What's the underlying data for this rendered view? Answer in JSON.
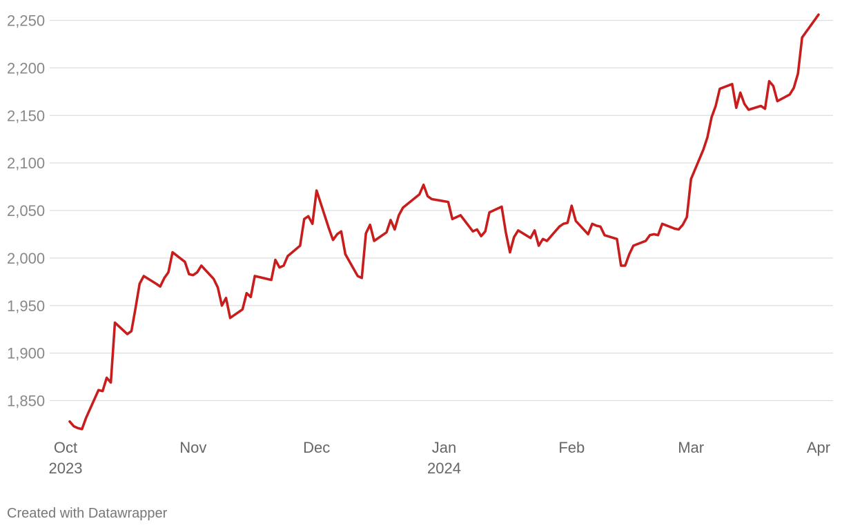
{
  "chart_data": {
    "type": "line",
    "title": "",
    "xlabel": "",
    "ylabel": "",
    "ylim": [
      1810,
      2260
    ],
    "xlim": [
      "2023-10-01",
      "2024-04-01"
    ],
    "y_ticks": [
      1850,
      1900,
      1950,
      2000,
      2050,
      2100,
      2150,
      2200,
      2250
    ],
    "y_tick_labels": [
      "1,850",
      "1,900",
      "1,950",
      "2,000",
      "2,050",
      "2,100",
      "2,150",
      "2,200",
      "2,250"
    ],
    "x_ticks": [
      {
        "date": "2023-10-01",
        "label": "Oct",
        "sublabel": "2023"
      },
      {
        "date": "2023-11-01",
        "label": "Nov",
        "sublabel": ""
      },
      {
        "date": "2023-12-01",
        "label": "Dec",
        "sublabel": ""
      },
      {
        "date": "2024-01-01",
        "label": "Jan",
        "sublabel": "2024"
      },
      {
        "date": "2024-02-01",
        "label": "Feb",
        "sublabel": ""
      },
      {
        "date": "2024-03-01",
        "label": "Mar",
        "sublabel": ""
      },
      {
        "date": "2024-04-01",
        "label": "Apr",
        "sublabel": ""
      }
    ],
    "grid": true,
    "line_color": "#c71e1d",
    "series": [
      {
        "values": [
          [
            "2023-10-02",
            1828
          ],
          [
            "2023-10-03",
            1823
          ],
          [
            "2023-10-04",
            1821
          ],
          [
            "2023-10-05",
            1820
          ],
          [
            "2023-10-06",
            1832
          ],
          [
            "2023-10-09",
            1861
          ],
          [
            "2023-10-10",
            1860
          ],
          [
            "2023-10-11",
            1874
          ],
          [
            "2023-10-12",
            1869
          ],
          [
            "2023-10-13",
            1932
          ],
          [
            "2023-10-16",
            1920
          ],
          [
            "2023-10-17",
            1923
          ],
          [
            "2023-10-18",
            1947
          ],
          [
            "2023-10-19",
            1973
          ],
          [
            "2023-10-20",
            1981
          ],
          [
            "2023-10-23",
            1973
          ],
          [
            "2023-10-24",
            1970
          ],
          [
            "2023-10-25",
            1979
          ],
          [
            "2023-10-26",
            1985
          ],
          [
            "2023-10-27",
            2006
          ],
          [
            "2023-10-30",
            1996
          ],
          [
            "2023-10-31",
            1983
          ],
          [
            "2023-11-01",
            1982
          ],
          [
            "2023-11-02",
            1985
          ],
          [
            "2023-11-03",
            1992
          ],
          [
            "2023-11-06",
            1978
          ],
          [
            "2023-11-07",
            1969
          ],
          [
            "2023-11-08",
            1950
          ],
          [
            "2023-11-09",
            1958
          ],
          [
            "2023-11-10",
            1937
          ],
          [
            "2023-11-13",
            1946
          ],
          [
            "2023-11-14",
            1963
          ],
          [
            "2023-11-15",
            1959
          ],
          [
            "2023-11-16",
            1981
          ],
          [
            "2023-11-17",
            1980
          ],
          [
            "2023-11-20",
            1977
          ],
          [
            "2023-11-21",
            1998
          ],
          [
            "2023-11-22",
            1990
          ],
          [
            "2023-11-23",
            1992
          ],
          [
            "2023-11-24",
            2002
          ],
          [
            "2023-11-27",
            2013
          ],
          [
            "2023-11-28",
            2041
          ],
          [
            "2023-11-29",
            2044
          ],
          [
            "2023-11-30",
            2036
          ],
          [
            "2023-12-01",
            2071
          ],
          [
            "2023-12-04",
            2031
          ],
          [
            "2023-12-05",
            2019
          ],
          [
            "2023-12-06",
            2025
          ],
          [
            "2023-12-07",
            2028
          ],
          [
            "2023-12-08",
            2004
          ],
          [
            "2023-12-11",
            1981
          ],
          [
            "2023-12-12",
            1979
          ],
          [
            "2023-12-13",
            2026
          ],
          [
            "2023-12-14",
            2035
          ],
          [
            "2023-12-15",
            2018
          ],
          [
            "2023-12-18",
            2027
          ],
          [
            "2023-12-19",
            2040
          ],
          [
            "2023-12-20",
            2030
          ],
          [
            "2023-12-21",
            2045
          ],
          [
            "2023-12-22",
            2053
          ],
          [
            "2023-12-26",
            2067
          ],
          [
            "2023-12-27",
            2077
          ],
          [
            "2023-12-28",
            2065
          ],
          [
            "2023-12-29",
            2062
          ],
          [
            "2024-01-02",
            2059
          ],
          [
            "2024-01-03",
            2041
          ],
          [
            "2024-01-04",
            2043
          ],
          [
            "2024-01-05",
            2045
          ],
          [
            "2024-01-08",
            2028
          ],
          [
            "2024-01-09",
            2030
          ],
          [
            "2024-01-10",
            2023
          ],
          [
            "2024-01-11",
            2028
          ],
          [
            "2024-01-12",
            2048
          ],
          [
            "2024-01-15",
            2054
          ],
          [
            "2024-01-16",
            2027
          ],
          [
            "2024-01-17",
            2006
          ],
          [
            "2024-01-18",
            2022
          ],
          [
            "2024-01-19",
            2029
          ],
          [
            "2024-01-22",
            2021
          ],
          [
            "2024-01-23",
            2029
          ],
          [
            "2024-01-24",
            2013
          ],
          [
            "2024-01-25",
            2020
          ],
          [
            "2024-01-26",
            2018
          ],
          [
            "2024-01-29",
            2033
          ],
          [
            "2024-01-30",
            2036
          ],
          [
            "2024-01-31",
            2037
          ],
          [
            "2024-02-01",
            2055
          ],
          [
            "2024-02-02",
            2039
          ],
          [
            "2024-02-05",
            2025
          ],
          [
            "2024-02-06",
            2036
          ],
          [
            "2024-02-07",
            2034
          ],
          [
            "2024-02-08",
            2033
          ],
          [
            "2024-02-09",
            2024
          ],
          [
            "2024-02-12",
            2020
          ],
          [
            "2024-02-13",
            1992
          ],
          [
            "2024-02-14",
            1992
          ],
          [
            "2024-02-15",
            2004
          ],
          [
            "2024-02-16",
            2013
          ],
          [
            "2024-02-19",
            2018
          ],
          [
            "2024-02-20",
            2024
          ],
          [
            "2024-02-21",
            2025
          ],
          [
            "2024-02-22",
            2024
          ],
          [
            "2024-02-23",
            2036
          ],
          [
            "2024-02-26",
            2031
          ],
          [
            "2024-02-27",
            2030
          ],
          [
            "2024-02-28",
            2035
          ],
          [
            "2024-02-29",
            2043
          ],
          [
            "2024-03-01",
            2083
          ],
          [
            "2024-03-04",
            2114
          ],
          [
            "2024-03-05",
            2127
          ],
          [
            "2024-03-06",
            2148
          ],
          [
            "2024-03-07",
            2160
          ],
          [
            "2024-03-08",
            2178
          ],
          [
            "2024-03-11",
            2183
          ],
          [
            "2024-03-12",
            2158
          ],
          [
            "2024-03-13",
            2174
          ],
          [
            "2024-03-14",
            2162
          ],
          [
            "2024-03-15",
            2156
          ],
          [
            "2024-03-18",
            2160
          ],
          [
            "2024-03-19",
            2157
          ],
          [
            "2024-03-20",
            2186
          ],
          [
            "2024-03-21",
            2181
          ],
          [
            "2024-03-22",
            2165
          ],
          [
            "2024-03-25",
            2172
          ],
          [
            "2024-03-26",
            2179
          ],
          [
            "2024-03-27",
            2194
          ],
          [
            "2024-03-28",
            2232
          ],
          [
            "2024-04-01",
            2256
          ]
        ]
      }
    ]
  },
  "credit": "Created with Datawrapper"
}
